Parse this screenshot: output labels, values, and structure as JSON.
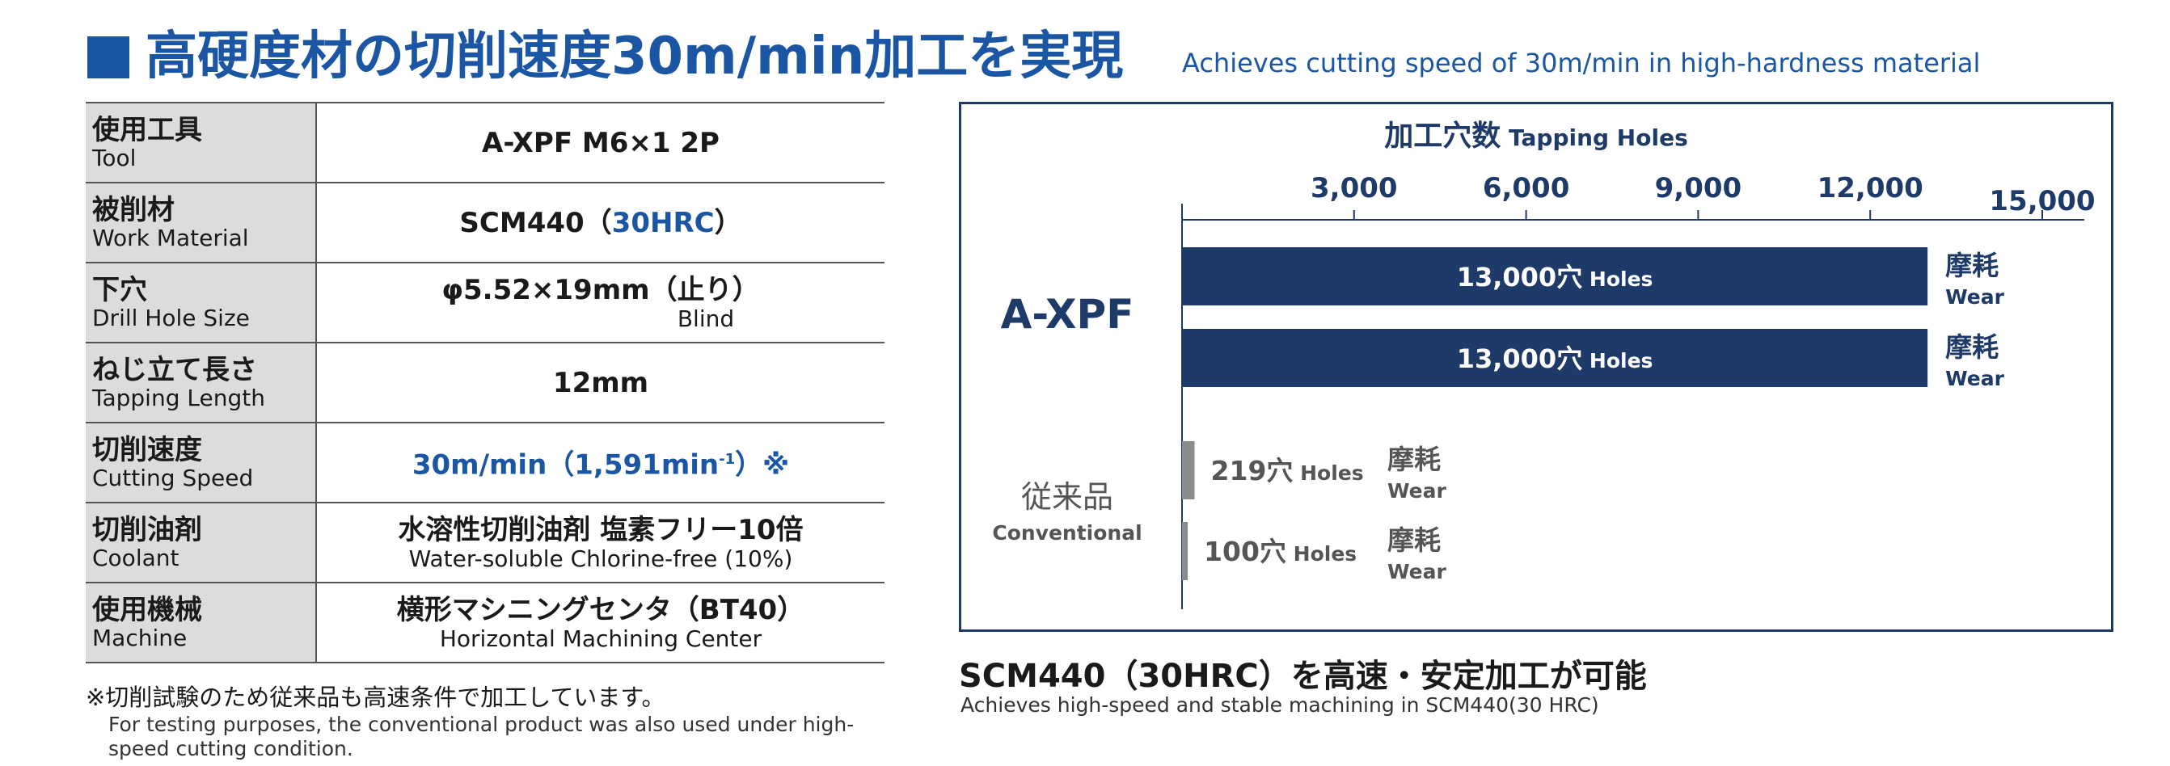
{
  "header": {
    "title_jp": "高硬度材の切削速度30m/min加工を実現",
    "title_en": "Achieves cutting speed of 30m/min in high-hardness material"
  },
  "spec_table": [
    {
      "label_jp": "使用工具",
      "label_en": "Tool",
      "value_main": "A-XPF M6×1 2P",
      "value_sub": ""
    },
    {
      "label_jp": "被削材",
      "label_en": "Work Material",
      "value_main_pre": "SCM440（",
      "value_main_blue": "30HRC",
      "value_main_post": "）",
      "value_sub": ""
    },
    {
      "label_jp": "下穴",
      "label_en": "Drill Hole Size",
      "value_main": "φ5.52×19mm（止り）",
      "value_sub": "Blind"
    },
    {
      "label_jp": "ねじ立て長さ",
      "label_en": "Tapping Length",
      "value_main": "12mm",
      "value_sub": ""
    },
    {
      "label_jp": "切削速度",
      "label_en": "Cutting Speed",
      "value_main": "30m/min（1,591min",
      "value_sup": "-1",
      "value_post": "）※",
      "value_sub": ""
    },
    {
      "label_jp": "切削油剤",
      "label_en": "Coolant",
      "value_main": "水溶性切削油剤 塩素フリー10倍",
      "value_sub": "Water-soluble Chlorine-free (10%)"
    },
    {
      "label_jp": "使用機械",
      "label_en": "Machine",
      "value_main": "横形マシニングセンタ（BT40）",
      "value_sub": "Horizontal Machining Center"
    }
  ],
  "footnote": {
    "jp": "※切削試験のため従来品も高速条件で加工しています。",
    "en": "For testing purposes, the conventional product was also used under high-speed cutting condition."
  },
  "chart_data": {
    "type": "bar",
    "orientation": "horizontal",
    "title_jp": "加工穴数",
    "title_en": "Tapping Holes",
    "xlim": [
      0,
      15000
    ],
    "x_ticks": [
      3000,
      6000,
      9000,
      12000,
      15000
    ],
    "x_tick_labels": [
      "3,000",
      "6,000",
      "9,000",
      "12,000",
      "15,000"
    ],
    "groups": [
      {
        "label_jp": "",
        "label_en": "A-XPF",
        "color": "#1e3a68",
        "bars": [
          {
            "value": 13000,
            "value_label": "13,000穴",
            "unit_en": "Holes",
            "result_jp": "摩耗",
            "result_en": "Wear"
          },
          {
            "value": 13000,
            "value_label": "13,000穴",
            "unit_en": "Holes",
            "result_jp": "摩耗",
            "result_en": "Wear"
          }
        ]
      },
      {
        "label_jp": "従来品",
        "label_en": "Conventional",
        "color": "#8c8c8c",
        "bars": [
          {
            "value": 219,
            "value_label": "219穴",
            "unit_en": "Holes",
            "result_jp": "摩耗",
            "result_en": "Wear"
          },
          {
            "value": 100,
            "value_label": "100穴",
            "unit_en": "Holes",
            "result_jp": "摩耗",
            "result_en": "Wear"
          }
        ]
      }
    ]
  },
  "caption": {
    "jp": "SCM440（30HRC）を高速・安定加工が可能",
    "en": "Achieves high-speed and stable machining in SCM440(30 HRC)"
  },
  "colors": {
    "brand_blue": "#1a56a4",
    "navy": "#1e3a68",
    "gray_bar": "#8c8c8c",
    "label_bg": "#dcdcdc"
  }
}
